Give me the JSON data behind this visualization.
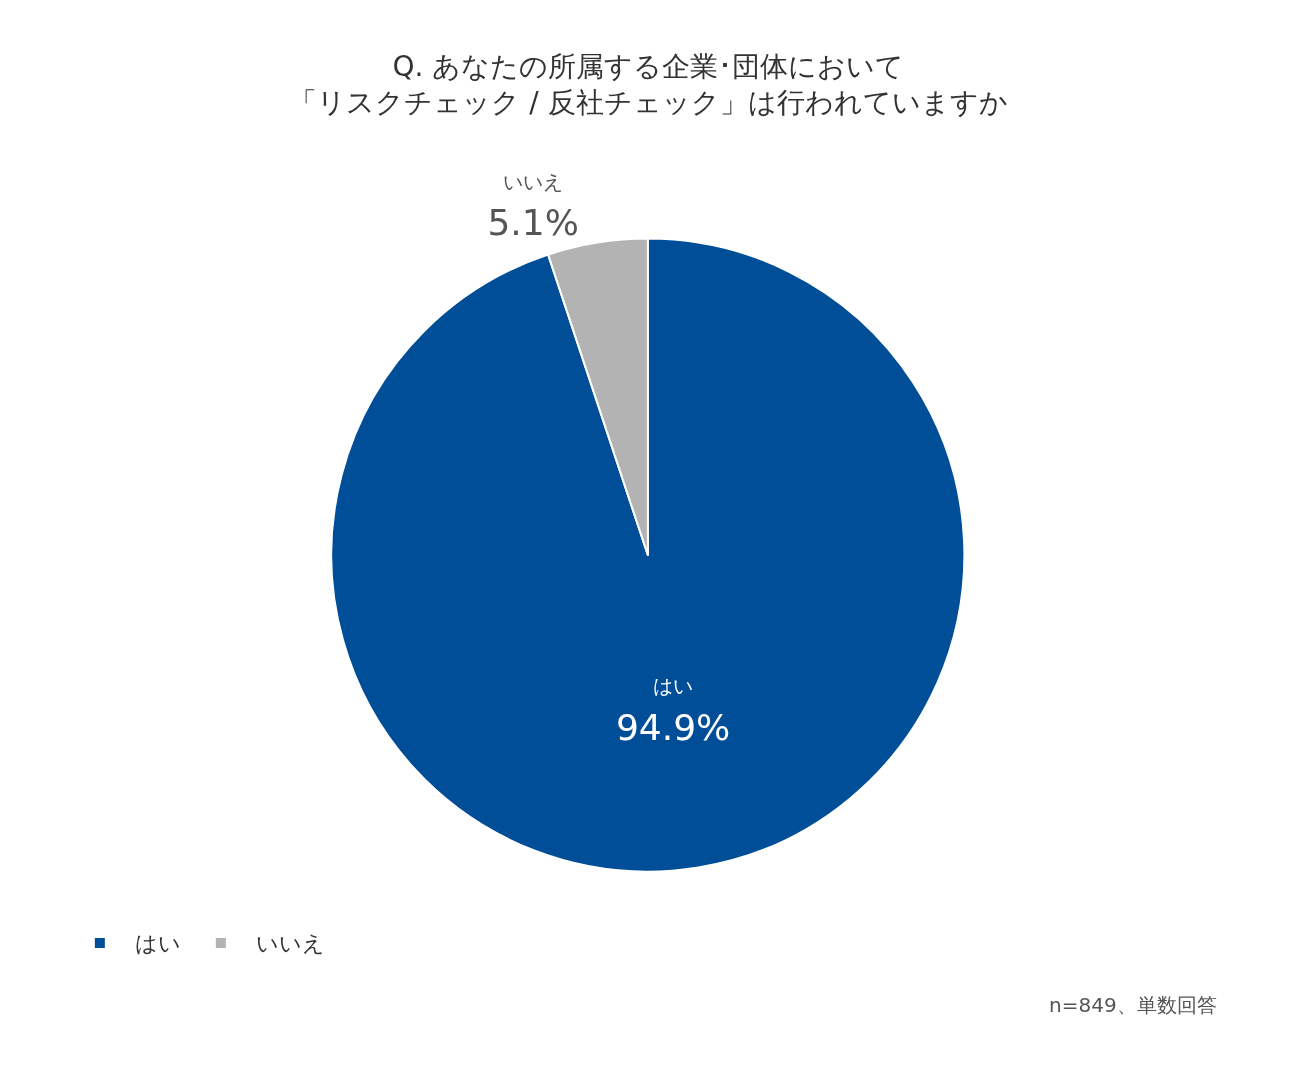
{
  "chart_data": {
    "type": "pie",
    "title": "Q. あなたの所属する企業･団体において",
    "subtitle": "「リスクチェック / 反社チェック」は行われていますか",
    "categories": [
      "はい",
      "いいえ"
    ],
    "values": [
      94.9,
      5.1
    ],
    "colors": [
      "#004e98",
      "#b3b3b3"
    ],
    "value_labels": [
      "94.9%",
      "5.1%"
    ],
    "legend": "bottom left",
    "annotations": [
      "n=849、単数回答"
    ]
  }
}
